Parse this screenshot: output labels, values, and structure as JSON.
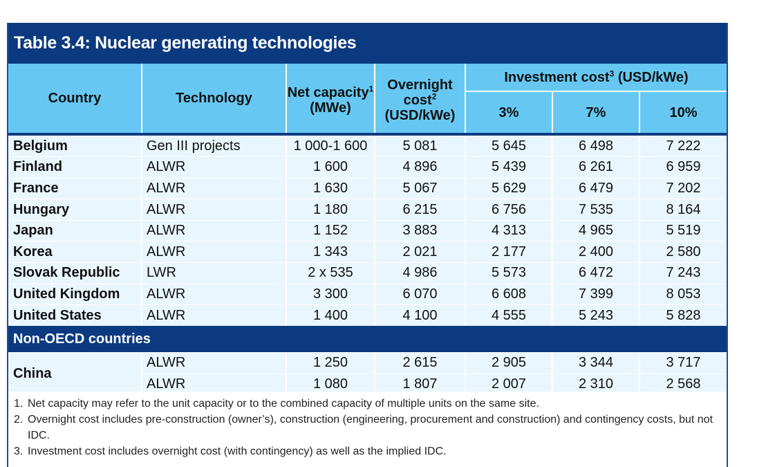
{
  "title": "Table 3.4: Nuclear generating technologies",
  "headers": {
    "country": "Country",
    "technology": "Technology",
    "net_capacity": "Net capacity",
    "net_capacity_sup": "1",
    "net_capacity_unit": "(MWe)",
    "overnight_cost": "Overnight cost",
    "overnight_cost_sup": "2",
    "overnight_cost_unit": "(USD/kWe)",
    "investment_cost": "Investment cost",
    "investment_cost_sup": "3",
    "investment_cost_unit": " (USD/kWe)",
    "rate_3": "3%",
    "rate_7": "7%",
    "rate_10": "10%"
  },
  "rows": [
    {
      "country": "Belgium",
      "technology": "Gen III projects",
      "capacity": "1 000-1 600",
      "overnight": "5 081",
      "r3": "5 645",
      "r7": "6 498",
      "r10": "7 222"
    },
    {
      "country": "Finland",
      "technology": "ALWR",
      "capacity": "1 600",
      "overnight": "4 896",
      "r3": "5 439",
      "r7": "6 261",
      "r10": "6 959"
    },
    {
      "country": "France",
      "technology": "ALWR",
      "capacity": "1 630",
      "overnight": "5 067",
      "r3": "5 629",
      "r7": "6 479",
      "r10": "7 202"
    },
    {
      "country": "Hungary",
      "technology": "ALWR",
      "capacity": "1 180",
      "overnight": "6 215",
      "r3": "6 756",
      "r7": "7 535",
      "r10": "8 164"
    },
    {
      "country": "Japan",
      "technology": "ALWR",
      "capacity": "1 152",
      "overnight": "3 883",
      "r3": "4 313",
      "r7": "4 965",
      "r10": "5 519"
    },
    {
      "country": "Korea",
      "technology": "ALWR",
      "capacity": "1 343",
      "overnight": "2 021",
      "r3": "2 177",
      "r7": "2 400",
      "r10": "2 580"
    },
    {
      "country": "Slovak Republic",
      "technology": "LWR",
      "capacity": "2 x 535",
      "overnight": "4 986",
      "r3": "5 573",
      "r7": "6 472",
      "r10": "7 243"
    },
    {
      "country": "United Kingdom",
      "technology": "ALWR",
      "capacity": "3 300",
      "overnight": "6 070",
      "r3": "6 608",
      "r7": "7 399",
      "r10": "8 053"
    },
    {
      "country": "United States",
      "technology": "ALWR",
      "capacity": "1 400",
      "overnight": "4 100",
      "r3": "4 555",
      "r7": "5 243",
      "r10": "5 828"
    }
  ],
  "non_oecd": {
    "label": "Non-OECD countries",
    "country": "China",
    "rows": [
      {
        "technology": "ALWR",
        "capacity": "1 250",
        "overnight": "2 615",
        "r3": "2 905",
        "r7": "3 344",
        "r10": "3 717"
      },
      {
        "technology": "ALWR",
        "capacity": "1 080",
        "overnight": "1 807",
        "r3": "2 007",
        "r7": "2 310",
        "r10": "2 568"
      }
    ]
  },
  "notes": [
    {
      "num": "1.",
      "text": "Net capacity may refer to the unit capacity or to the combined capacity of multiple units on the same site."
    },
    {
      "num": "2.",
      "text": "Overnight cost includes pre-construction (owner’s), construction (engineering, procurement and construction) and contingency costs, but not IDC."
    },
    {
      "num": "3.",
      "text": "Investment cost includes overnight cost (with contingency) as well as the implied IDC."
    }
  ]
}
